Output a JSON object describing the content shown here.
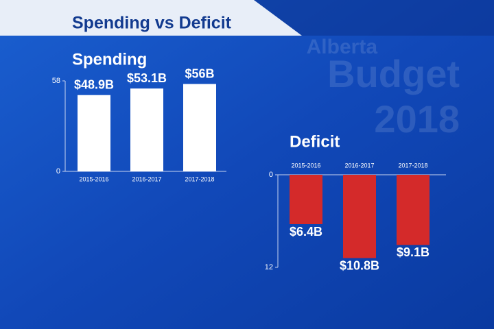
{
  "header": {
    "title": "Spending vs Deficit",
    "watermark": [
      "Alberta",
      "Budget",
      "2018"
    ]
  },
  "chart_data": [
    {
      "type": "bar",
      "title": "Spending",
      "categories": [
        "2015-2016",
        "2016-2017",
        "2017-2018"
      ],
      "values": [
        48.9,
        53.1,
        56
      ],
      "value_labels": [
        "$48.9B",
        "$53.1B",
        "$56B"
      ],
      "color": "#ffffff",
      "ylim": [
        0,
        58
      ],
      "yticks": [
        0,
        58
      ]
    },
    {
      "type": "bar",
      "title": "Deficit",
      "categories": [
        "2015-2016",
        "2016-2017",
        "2017-2018"
      ],
      "values": [
        6.4,
        10.8,
        9.1
      ],
      "value_labels": [
        "$6.4B",
        "$10.8B",
        "$9.1B"
      ],
      "color": "#d42a2a",
      "ylim": [
        0,
        12
      ],
      "yticks": [
        0,
        12
      ],
      "y_inverted": true
    }
  ]
}
